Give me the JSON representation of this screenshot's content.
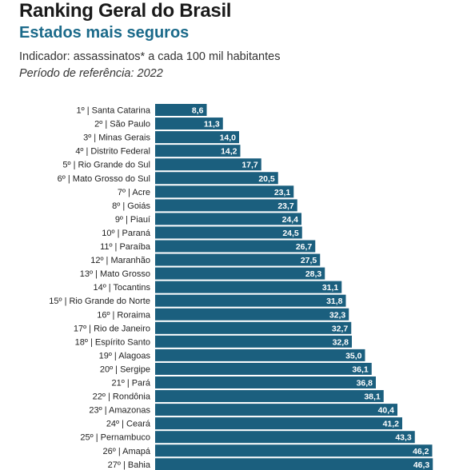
{
  "header": {
    "title": "Ranking Geral do Brasil",
    "subtitle": "Estados mais seguros",
    "indicator": "Indicador: assassinatos* a cada 100 mil habitantes",
    "period": "Período de referência: 2022"
  },
  "chart_data": {
    "type": "bar",
    "orientation": "horizontal",
    "bar_color": "#1b5f7e",
    "categories": [
      "1º | Santa Catarina",
      "2º | São Paulo",
      "3º | Minas Gerais",
      "4º | Distrito Federal",
      "5º | Rio Grande do Sul",
      "6º | Mato Grosso do Sul",
      "7º | Acre",
      "8º | Goiás",
      "9º | Piauí",
      "10º | Paraná",
      "11º | Paraíba",
      "12º | Maranhão",
      "13º | Mato Grosso",
      "14º | Tocantins",
      "15º | Rio Grande do Norte",
      "16º | Roraima",
      "17º | Rio de Janeiro",
      "18º | Espírito Santo",
      "19º | Alagoas",
      "20º | Sergipe",
      "21º | Pará",
      "22º | Rondônia",
      "23º | Amazonas",
      "24º | Ceará",
      "25º | Pernambuco",
      "26º | Amapá",
      "27º | Bahia"
    ],
    "values": [
      8.6,
      11.3,
      14.0,
      14.2,
      17.7,
      20.5,
      23.1,
      23.7,
      24.4,
      24.5,
      26.7,
      27.5,
      28.3,
      31.1,
      31.8,
      32.3,
      32.7,
      32.8,
      35.0,
      36.1,
      36.8,
      38.1,
      40.4,
      41.2,
      43.3,
      46.2,
      46.3
    ],
    "value_labels": [
      "8,6",
      "11,3",
      "14,0",
      "14,2",
      "17,7",
      "20,5",
      "23,1",
      "23,7",
      "24,4",
      "24,5",
      "26,7",
      "27,5",
      "28,3",
      "31,1",
      "31,8",
      "32,3",
      "32,7",
      "32,8",
      "35,0",
      "36,1",
      "36,8",
      "38,1",
      "40,4",
      "41,2",
      "43,3",
      "46,2",
      "46,3"
    ]
  }
}
